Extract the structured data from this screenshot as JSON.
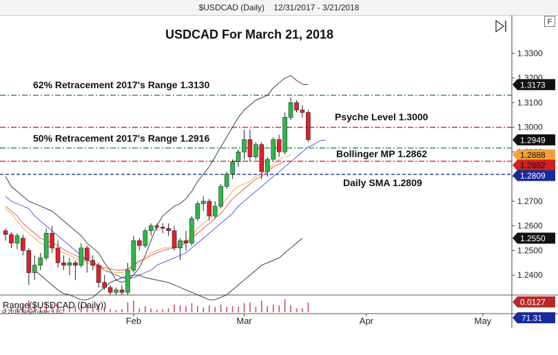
{
  "window": {
    "title_symbol": "$USDCAD (Daily)",
    "title_range": "12/31/2017 - 3/21/2018",
    "corner_button": "F",
    "copyright": "© 2018 NinjaTrader, LLC"
  },
  "colors": {
    "bull": "#2db84a",
    "bear": "#e0202a",
    "bollinger": "#2b2b2b",
    "sma": "#4a4ad6",
    "ema": "#f0a23a",
    "ema_mid": "#d6524a",
    "green_dash": "#2e8b3e",
    "red_dash": "#d42020",
    "blue_dash": "#1a2a9a",
    "range_bar": "#d24a5a"
  },
  "chart_data": {
    "type": "candlestick",
    "title": "USDCAD For March 21, 2018",
    "y_ticks": [
      "1.3300",
      "1.3200",
      "1.3100",
      "1.3000",
      "1.2900",
      "1.2800",
      "1.2700",
      "1.2600",
      "1.2500",
      "1.2400"
    ],
    "y_tick_values": [
      1.33,
      1.32,
      1.31,
      1.3,
      1.29,
      1.28,
      1.27,
      1.26,
      1.25,
      1.24
    ],
    "ylim": [
      1.2322,
      1.3455
    ],
    "x_tick_labels": [
      {
        "label": "Feb",
        "index": 22
      },
      {
        "label": "Mar",
        "index": 41
      },
      {
        "label": "Apr",
        "index": 62
      },
      {
        "label": "May",
        "index": 82
      }
    ],
    "candles": [
      {
        "o": 1.258,
        "h": 1.259,
        "l": 1.254,
        "c": 1.2565
      },
      {
        "o": 1.2565,
        "h": 1.2575,
        "l": 1.251,
        "c": 1.253
      },
      {
        "o": 1.253,
        "h": 1.257,
        "l": 1.2505,
        "c": 1.256
      },
      {
        "o": 1.255,
        "h": 1.2565,
        "l": 1.248,
        "c": 1.25
      },
      {
        "o": 1.25,
        "h": 1.251,
        "l": 1.236,
        "c": 1.241
      },
      {
        "o": 1.241,
        "h": 1.248,
        "l": 1.238,
        "c": 1.244
      },
      {
        "o": 1.244,
        "h": 1.249,
        "l": 1.242,
        "c": 1.247
      },
      {
        "o": 1.247,
        "h": 1.259,
        "l": 1.246,
        "c": 1.257
      },
      {
        "o": 1.257,
        "h": 1.26,
        "l": 1.249,
        "c": 1.251
      },
      {
        "o": 1.251,
        "h": 1.254,
        "l": 1.243,
        "c": 1.245
      },
      {
        "o": 1.245,
        "h": 1.248,
        "l": 1.242,
        "c": 1.244
      },
      {
        "o": 1.244,
        "h": 1.247,
        "l": 1.24,
        "c": 1.245
      },
      {
        "o": 1.245,
        "h": 1.246,
        "l": 1.238,
        "c": 1.244
      },
      {
        "o": 1.244,
        "h": 1.253,
        "l": 1.243,
        "c": 1.251
      },
      {
        "o": 1.251,
        "h": 1.252,
        "l": 1.241,
        "c": 1.246
      },
      {
        "o": 1.246,
        "h": 1.248,
        "l": 1.242,
        "c": 1.244
      },
      {
        "o": 1.244,
        "h": 1.245,
        "l": 1.235,
        "c": 1.237
      },
      {
        "o": 1.237,
        "h": 1.24,
        "l": 1.234,
        "c": 1.235
      },
      {
        "o": 1.235,
        "h": 1.236,
        "l": 1.232,
        "c": 1.233
      },
      {
        "o": 1.233,
        "h": 1.235,
        "l": 1.232,
        "c": 1.234
      },
      {
        "o": 1.234,
        "h": 1.236,
        "l": 1.232,
        "c": 1.233
      },
      {
        "o": 1.233,
        "h": 1.245,
        "l": 1.232,
        "c": 1.242
      },
      {
        "o": 1.242,
        "h": 1.256,
        "l": 1.241,
        "c": 1.254
      },
      {
        "o": 1.254,
        "h": 1.255,
        "l": 1.25,
        "c": 1.252
      },
      {
        "o": 1.252,
        "h": 1.259,
        "l": 1.251,
        "c": 1.258
      },
      {
        "o": 1.258,
        "h": 1.261,
        "l": 1.256,
        "c": 1.26
      },
      {
        "o": 1.26,
        "h": 1.261,
        "l": 1.258,
        "c": 1.2595
      },
      {
        "o": 1.2595,
        "h": 1.261,
        "l": 1.257,
        "c": 1.259
      },
      {
        "o": 1.259,
        "h": 1.261,
        "l": 1.256,
        "c": 1.258
      },
      {
        "o": 1.258,
        "h": 1.26,
        "l": 1.25,
        "c": 1.251
      },
      {
        "o": 1.251,
        "h": 1.255,
        "l": 1.246,
        "c": 1.254
      },
      {
        "o": 1.254,
        "h": 1.258,
        "l": 1.25,
        "c": 1.253
      },
      {
        "o": 1.253,
        "h": 1.264,
        "l": 1.252,
        "c": 1.263
      },
      {
        "o": 1.263,
        "h": 1.27,
        "l": 1.262,
        "c": 1.269
      },
      {
        "o": 1.269,
        "h": 1.272,
        "l": 1.266,
        "c": 1.27
      },
      {
        "o": 1.27,
        "h": 1.271,
        "l": 1.262,
        "c": 1.264
      },
      {
        "o": 1.264,
        "h": 1.27,
        "l": 1.263,
        "c": 1.268
      },
      {
        "o": 1.268,
        "h": 1.277,
        "l": 1.267,
        "c": 1.276
      },
      {
        "o": 1.276,
        "h": 1.282,
        "l": 1.275,
        "c": 1.281
      },
      {
        "o": 1.281,
        "h": 1.287,
        "l": 1.279,
        "c": 1.286
      },
      {
        "o": 1.286,
        "h": 1.291,
        "l": 1.284,
        "c": 1.29
      },
      {
        "o": 1.29,
        "h": 1.299,
        "l": 1.287,
        "c": 1.295
      },
      {
        "o": 1.295,
        "h": 1.299,
        "l": 1.286,
        "c": 1.288
      },
      {
        "o": 1.288,
        "h": 1.294,
        "l": 1.287,
        "c": 1.293
      },
      {
        "o": 1.293,
        "h": 1.294,
        "l": 1.279,
        "c": 1.282
      },
      {
        "o": 1.282,
        "h": 1.288,
        "l": 1.28,
        "c": 1.287
      },
      {
        "o": 1.287,
        "h": 1.296,
        "l": 1.286,
        "c": 1.295
      },
      {
        "o": 1.295,
        "h": 1.297,
        "l": 1.288,
        "c": 1.29
      },
      {
        "o": 1.29,
        "h": 1.306,
        "l": 1.289,
        "c": 1.304
      },
      {
        "o": 1.304,
        "h": 1.312,
        "l": 1.303,
        "c": 1.31
      },
      {
        "o": 1.31,
        "h": 1.311,
        "l": 1.306,
        "c": 1.307
      },
      {
        "o": 1.307,
        "h": 1.309,
        "l": 1.304,
        "c": 1.306
      },
      {
        "o": 1.306,
        "h": 1.307,
        "l": 1.294,
        "c": 1.295
      }
    ],
    "series": [
      {
        "key": "bb_upper",
        "color": "#2b2b2b",
        "from_index": 0,
        "values": [
          1.28,
          1.276,
          1.274,
          1.272,
          1.27,
          1.269,
          1.268,
          1.267,
          1.266,
          1.264,
          1.262,
          1.26,
          1.258,
          1.256,
          1.253,
          1.251,
          1.249,
          1.245,
          1.242,
          1.238,
          1.237,
          1.238,
          1.24,
          1.243,
          1.248,
          1.254,
          1.26,
          1.264,
          1.266,
          1.268,
          1.269,
          1.271,
          1.274,
          1.278,
          1.281,
          1.284,
          1.288,
          1.292,
          1.296,
          1.3,
          1.304,
          1.307,
          1.309,
          1.311,
          1.312,
          1.313,
          1.316,
          1.318,
          1.32,
          1.321,
          1.319,
          1.3175,
          1.3173
        ]
      },
      {
        "key": "sma",
        "color": "#4a4ad6",
        "from_index": 0,
        "values": [
          1.272,
          1.27,
          1.269,
          1.268,
          1.267,
          1.264,
          1.262,
          1.26,
          1.258,
          1.256,
          1.254,
          1.252,
          1.25,
          1.248,
          1.246,
          1.245,
          1.244,
          1.242,
          1.241,
          1.24,
          1.239,
          1.2385,
          1.239,
          1.24,
          1.241,
          1.242,
          1.244,
          1.245,
          1.246,
          1.247,
          1.248,
          1.249,
          1.251,
          1.253,
          1.255,
          1.257,
          1.259,
          1.261,
          1.263,
          1.265,
          1.268,
          1.27,
          1.272,
          1.274,
          1.276,
          1.278,
          1.28,
          1.282,
          1.284,
          1.286,
          1.288,
          1.29,
          1.292,
          1.293,
          1.2945,
          1.2949
        ]
      },
      {
        "key": "ema",
        "color": "#f0a23a",
        "from_index": 0,
        "values": [
          1.267,
          1.265,
          1.262,
          1.259,
          1.257,
          1.255,
          1.253,
          1.252,
          1.251,
          1.25,
          1.249,
          1.248,
          1.247,
          1.246,
          1.245,
          1.244,
          1.243,
          1.242,
          1.2415,
          1.241,
          1.241,
          1.242,
          1.244,
          1.246,
          1.247,
          1.249,
          1.25,
          1.251,
          1.251,
          1.252,
          1.253,
          1.254,
          1.256,
          1.259,
          1.261,
          1.263,
          1.265,
          1.268,
          1.271,
          1.274,
          1.276,
          1.277,
          1.278,
          1.28,
          1.281,
          1.283,
          1.285,
          1.287,
          1.288,
          1.2888
        ]
      },
      {
        "key": "ema_mid",
        "color": "#d6524a",
        "from_index": 0,
        "values": [
          1.268,
          1.266,
          1.264,
          1.261,
          1.259,
          1.257,
          1.255,
          1.254,
          1.253,
          1.252,
          1.2505,
          1.249,
          1.248,
          1.247,
          1.246,
          1.245,
          1.244,
          1.243,
          1.2425,
          1.242,
          1.242,
          1.2425,
          1.244,
          1.2455,
          1.2465,
          1.248,
          1.249,
          1.25,
          1.2505,
          1.251,
          1.252,
          1.253,
          1.255,
          1.257,
          1.259,
          1.261,
          1.263,
          1.265,
          1.268,
          1.271,
          1.273,
          1.275,
          1.277,
          1.279,
          1.28,
          1.282,
          1.284,
          1.285,
          1.2862
        ]
      },
      {
        "key": "bb_lower",
        "color": "#2b2b2b",
        "from_index": 5,
        "values": [
          1.242,
          1.24,
          1.238,
          1.236,
          1.234,
          1.2325,
          1.232,
          1.231,
          1.23,
          1.23,
          1.231,
          1.233,
          1.235,
          1.237,
          1.238,
          1.239,
          1.2395,
          1.24,
          1.24,
          1.239,
          1.2385,
          1.238,
          1.2375,
          1.237,
          1.236,
          1.235,
          1.234,
          1.233,
          1.232,
          1.231,
          1.23,
          1.23,
          1.231,
          1.232,
          1.234,
          1.236,
          1.238,
          1.24,
          1.242,
          1.244,
          1.245,
          1.246,
          1.247,
          1.249,
          1.251,
          1.253,
          1.255
        ]
      }
    ],
    "levels": [
      {
        "key": "fib62",
        "value": 1.313,
        "label": "62% Retracement 2017's Range 1.3130",
        "color": "#2e8b3e",
        "style": "dashdot"
      },
      {
        "key": "psyche",
        "value": 1.3,
        "label": "Psyche Level 1.3000",
        "color": "#d42020",
        "style": "dashdot"
      },
      {
        "key": "fib50",
        "value": 1.2916,
        "label": "50% Retracement 2017's Range 1.2916",
        "color": "#2e8b3e",
        "style": "dashdot"
      },
      {
        "key": "bollinger_mp",
        "value": 1.2862,
        "label": "Bollinger MP 1.2862",
        "color": "#d42020",
        "style": "dashdot"
      },
      {
        "key": "daily_sma",
        "value": 1.2809,
        "label": "Daily SMA 1.2809",
        "color": "#1a2a9a",
        "style": "dashed"
      }
    ],
    "price_tags": [
      {
        "text": "1.3173",
        "value": 1.3173,
        "bg": "#111111",
        "fg": "#ffffff"
      },
      {
        "text": "1.2949",
        "value": 1.2949,
        "bg": "#111111",
        "fg": "#ffffff"
      },
      {
        "text": "1.2888",
        "value": 1.2888,
        "bg": "#f0a23a",
        "fg": "#111111"
      },
      {
        "text": "1.2862",
        "value": 1.2862,
        "bg": "#d42020",
        "fg": "#111111"
      },
      {
        "text": "1.2809",
        "value": 1.2809,
        "bg": "#1a2a9a",
        "fg": "#ffffff"
      },
      {
        "text": "1.2550",
        "value": 1.255,
        "bg": "#111111",
        "fg": "#ffffff"
      }
    ],
    "range_panel": {
      "label": "Range($USDCAD (Daily))",
      "value_tag": "0.0127",
      "value_tag_bg": "#b82a2a",
      "values": [
        0.005,
        0.0065,
        0.0065,
        0.0085,
        0.015,
        0.01,
        0.007,
        0.013,
        0.011,
        0.011,
        0.006,
        0.007,
        0.008,
        0.01,
        0.011,
        0.006,
        0.01,
        0.006,
        0.004,
        0.003,
        0.004,
        0.013,
        0.015,
        0.005,
        0.008,
        0.005,
        0.003,
        0.004,
        0.005,
        0.01,
        0.009,
        0.008,
        0.012,
        0.008,
        0.006,
        0.009,
        0.007,
        0.01,
        0.007,
        0.008,
        0.007,
        0.012,
        0.013,
        0.007,
        0.015,
        0.008,
        0.01,
        0.009,
        0.017,
        0.009,
        0.005,
        0.005,
        0.0127
      ]
    },
    "bottom_tag": {
      "text": "71.31",
      "bg": "#1a2a9a"
    }
  }
}
